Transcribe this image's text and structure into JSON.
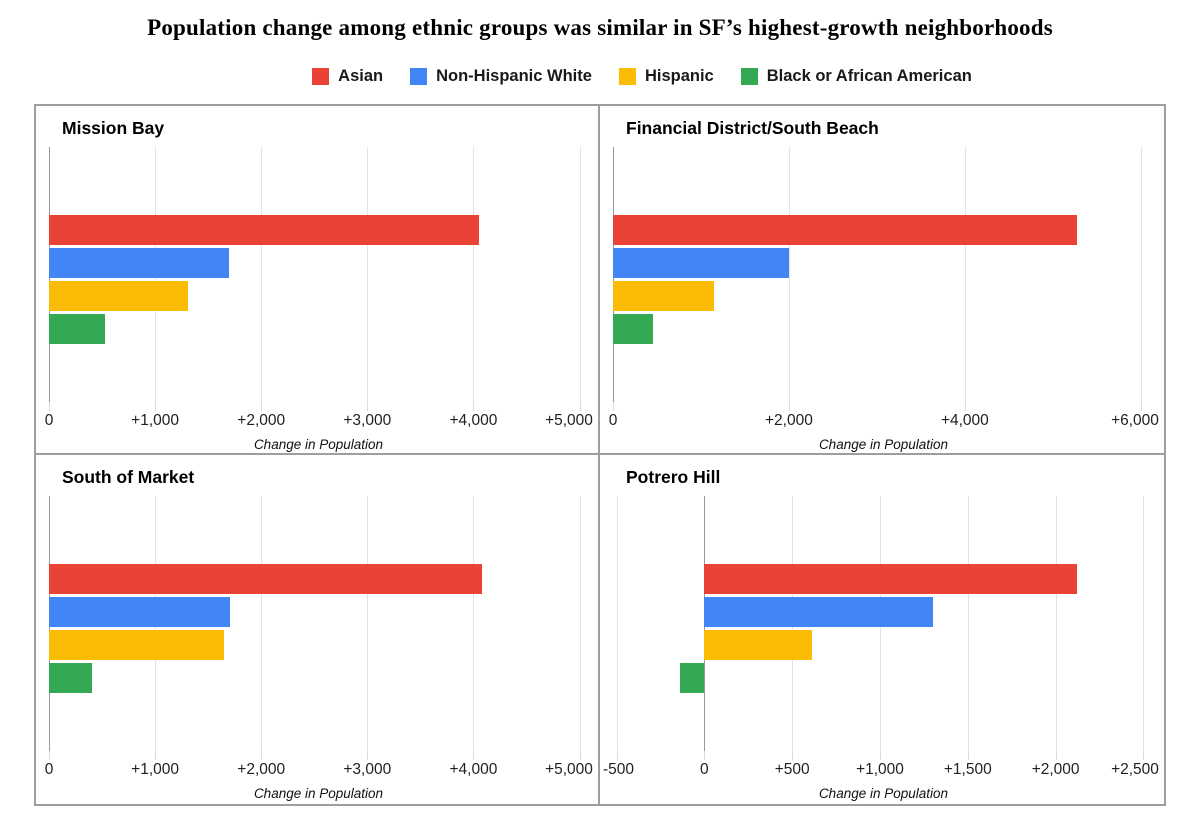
{
  "title": "Population change among ethnic groups was similar in SF’s highest-growth neighborhoods",
  "legend": [
    {
      "label": "Asian",
      "color": "#EA4335"
    },
    {
      "label": "Non-Hispanic White",
      "color": "#4285F4"
    },
    {
      "label": "Hispanic",
      "color": "#FBBC05"
    },
    {
      "label": "Black or African American",
      "color": "#34A853"
    }
  ],
  "chart_data": {
    "type": "bar",
    "orientation": "horizontal",
    "grid": true,
    "legend_position": "top",
    "xlabel": "Change in Population",
    "series_labels": [
      "Asian",
      "Non-Hispanic White",
      "Hispanic",
      "Black or African American"
    ],
    "series_colors": [
      "#EA4335",
      "#4285F4",
      "#FBBC05",
      "#34A853"
    ],
    "panels": [
      {
        "title": "Mission Bay",
        "values": [
          4050,
          1700,
          1310,
          530
        ],
        "ticks": [
          0,
          1000,
          2000,
          3000,
          4000,
          5000
        ],
        "tick_labels": [
          "0",
          "+1,000",
          "+2,000",
          "+3,000",
          "+4,000",
          "+5,000"
        ],
        "xmin": 0,
        "xmax": 5080
      },
      {
        "title": "Financial District/South Beach",
        "values": [
          5270,
          2000,
          1145,
          450
        ],
        "ticks": [
          0,
          2000,
          4000,
          6000
        ],
        "tick_labels": [
          "0",
          "+2,000",
          "+4,000",
          "+6,000"
        ],
        "xmin": 0,
        "xmax": 6150
      },
      {
        "title": "South of Market",
        "values": [
          4080,
          1710,
          1645,
          405
        ],
        "ticks": [
          0,
          1000,
          2000,
          3000,
          4000,
          5000
        ],
        "tick_labels": [
          "0",
          "+1,000",
          "+2,000",
          "+3,000",
          "+4,000",
          "+5,000"
        ],
        "xmin": 0,
        "xmax": 5080
      },
      {
        "title": "Potrero Hill",
        "values": [
          2120,
          1300,
          615,
          -140
        ],
        "ticks": [
          -500,
          0,
          500,
          1000,
          1500,
          2000,
          2500
        ],
        "tick_labels": [
          "-500",
          "0",
          "+500",
          "+1,000",
          "+1,500",
          "+2,000",
          "+2,500"
        ],
        "xmin": -520,
        "xmax": 2560
      }
    ]
  }
}
